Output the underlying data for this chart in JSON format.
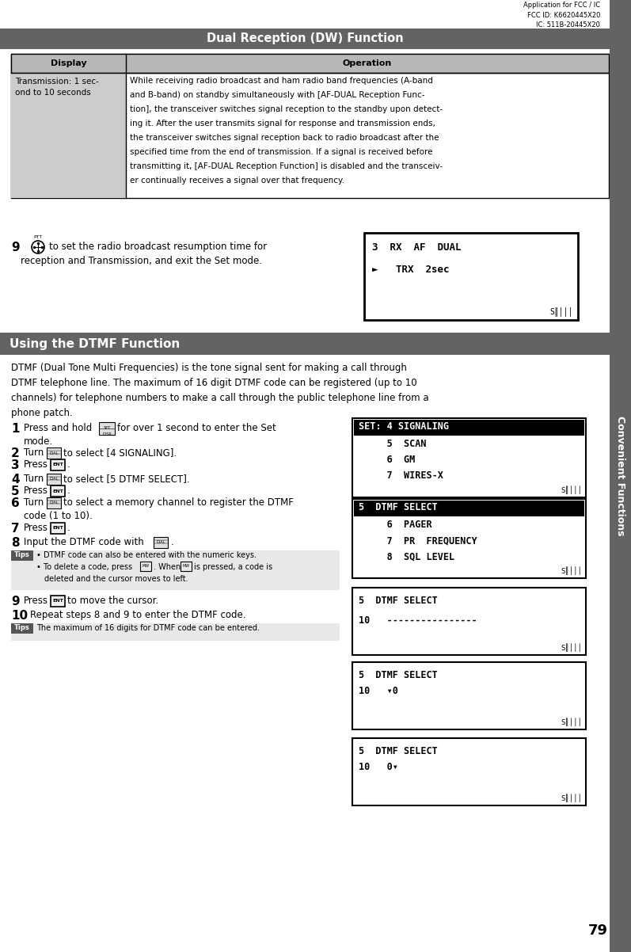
{
  "page_number": "79",
  "sidebar_text": "Convenient Functions",
  "header_fcc": "Application for FCC / IC\nFCC ID: K6620445X20\nIC: 511B-20445X20",
  "section1_title": "Dual Reception (DW) Function",
  "table_header_display": "Display",
  "table_header_operation": "Operation",
  "table_row1_display": "Transmission: 1 sec-\nond to 10 seconds",
  "section2_title": "Using the DTMF Function",
  "dtmf_intro_lines": [
    "DTMF (Dual Tone Multi Frequencies) is the tone signal sent for making a call through",
    "DTMF telephone line. The maximum of 16 digit DTMF code can be registered (up to 10",
    "channels) for telephone numbers to make a call through the public telephone line from a",
    "phone patch."
  ],
  "lcd1_line1": "3  RX  AF  DUAL",
  "lcd1_line2": "►   TRX  2sec",
  "lcd2_line1h": "SET: 4 SIGNALING",
  "lcd2_lines": [
    "     5  SCAN",
    "     6  GM",
    "     7  WIRES-X"
  ],
  "lcd3_line1h": "5  DTMF SELECT",
  "lcd3_lines": [
    "     6  PAGER",
    "     7  PR  FREQUENCY",
    "     8  SQL LEVEL"
  ],
  "lcd4_line1": "5  DTMF SELECT",
  "lcd4_line2": "10   ----------------",
  "lcd5_line1": "5  DTMF SELECT",
  "lcd5_line2": "10   0",
  "lcd6_line1": "5  DTMF SELECT",
  "lcd6_line2": "10   0",
  "bg_color": "#ffffff",
  "header_bg": "#636363",
  "table_header_bg": "#b8b8b8",
  "table_display_bg": "#cccccc",
  "sidebar_bg": "#636363",
  "op_text_lines": [
    "While receiving radio broadcast and ham radio band frequencies (A-band",
    "and B-band) on standby simultaneously with [AF-DUAL Reception Func-",
    "tion], the transceiver switches signal reception to the standby upon detect-",
    "ing it. After the user transmits signal for response and transmission ends,",
    "the transceiver switches signal reception back to radio broadcast after the",
    "specified time from the end of transmission. If a signal is received before",
    "transmitting it, [AF-DUAL Reception Function] is disabled and the transceiv-",
    "er continually receives a signal over that frequency."
  ]
}
